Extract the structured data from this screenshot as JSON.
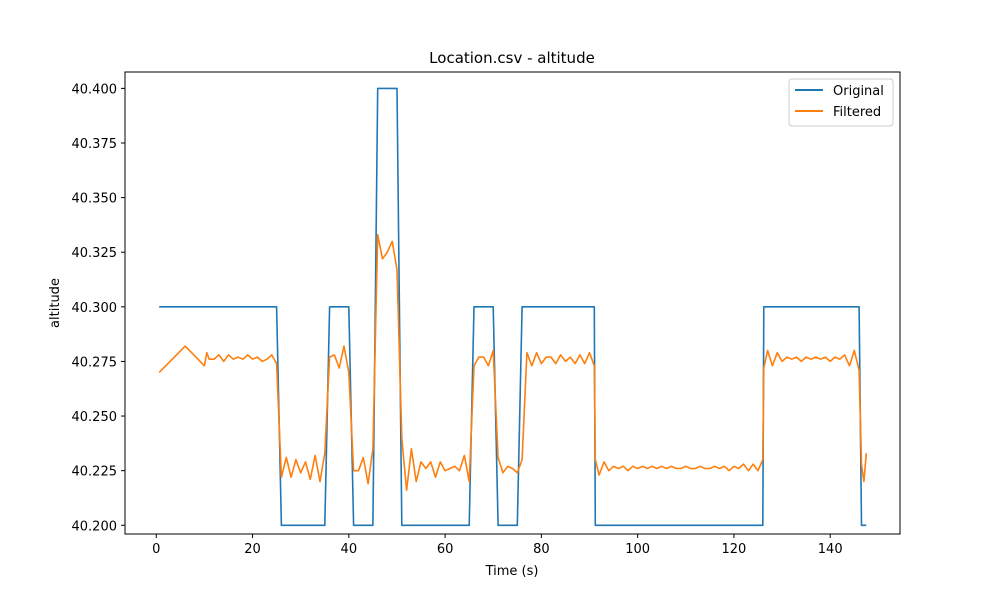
{
  "chart_data": {
    "type": "line",
    "title": "Location.csv - altitude",
    "xlabel": "Time (s)",
    "ylabel": "altitude",
    "xlim": [
      -6.5,
      154.5
    ],
    "ylim": [
      40.196,
      40.4075
    ],
    "xticks": [
      0,
      20,
      40,
      60,
      80,
      100,
      120,
      140
    ],
    "yticks": [
      40.2,
      40.225,
      40.25,
      40.275,
      40.3,
      40.325,
      40.35,
      40.375,
      40.4
    ],
    "ytick_format": 3,
    "grid": false,
    "legend": {
      "placement": "top-right"
    },
    "series": [
      {
        "name": "Original",
        "color": "#1f77b4",
        "points": [
          [
            0.6,
            40.3
          ],
          [
            25.0,
            40.3
          ],
          [
            26.0,
            40.2
          ],
          [
            35.0,
            40.2
          ],
          [
            36.0,
            40.3
          ],
          [
            40.0,
            40.3
          ],
          [
            41.0,
            40.2
          ],
          [
            45.0,
            40.2
          ],
          [
            46.0,
            40.4
          ],
          [
            50.0,
            40.4
          ],
          [
            51.0,
            40.2
          ],
          [
            65.0,
            40.2
          ],
          [
            66.0,
            40.3
          ],
          [
            70.0,
            40.3
          ],
          [
            71.0,
            40.2
          ],
          [
            75.0,
            40.2
          ],
          [
            76.0,
            40.3
          ],
          [
            91.0,
            40.3
          ],
          [
            91.2,
            40.2
          ],
          [
            126.0,
            40.2
          ],
          [
            126.2,
            40.3
          ],
          [
            146.0,
            40.3
          ],
          [
            146.5,
            40.2
          ],
          [
            147.5,
            40.2
          ]
        ]
      },
      {
        "name": "Filtered",
        "color": "#ff7f0e",
        "points": [
          [
            0.6,
            40.27
          ],
          [
            6.0,
            40.282
          ],
          [
            10.0,
            40.273
          ],
          [
            10.5,
            40.279
          ],
          [
            11.0,
            40.276
          ],
          [
            12.0,
            40.276
          ],
          [
            13.0,
            40.278
          ],
          [
            14.0,
            40.275
          ],
          [
            15.0,
            40.278
          ],
          [
            16.0,
            40.276
          ],
          [
            17.0,
            40.277
          ],
          [
            18.0,
            40.276
          ],
          [
            19.0,
            40.278
          ],
          [
            20.0,
            40.276
          ],
          [
            21.0,
            40.277
          ],
          [
            22.0,
            40.275
          ],
          [
            23.0,
            40.276
          ],
          [
            24.0,
            40.278
          ],
          [
            25.0,
            40.274
          ],
          [
            26.0,
            40.222
          ],
          [
            27.0,
            40.231
          ],
          [
            28.0,
            40.222
          ],
          [
            29.0,
            40.23
          ],
          [
            30.0,
            40.224
          ],
          [
            31.0,
            40.229
          ],
          [
            32.0,
            40.221
          ],
          [
            33.0,
            40.232
          ],
          [
            34.0,
            40.22
          ],
          [
            35.0,
            40.233
          ],
          [
            36.0,
            40.277
          ],
          [
            37.0,
            40.278
          ],
          [
            38.0,
            40.272
          ],
          [
            39.0,
            40.282
          ],
          [
            40.0,
            40.27
          ],
          [
            41.0,
            40.225
          ],
          [
            42.0,
            40.225
          ],
          [
            43.0,
            40.231
          ],
          [
            44.0,
            40.219
          ],
          [
            45.0,
            40.235
          ],
          [
            46.0,
            40.333
          ],
          [
            47.0,
            40.322
          ],
          [
            48.0,
            40.325
          ],
          [
            49.0,
            40.33
          ],
          [
            50.0,
            40.317
          ],
          [
            51.0,
            40.24
          ],
          [
            52.0,
            40.216
          ],
          [
            53.0,
            40.235
          ],
          [
            54.0,
            40.22
          ],
          [
            55.0,
            40.229
          ],
          [
            56.0,
            40.226
          ],
          [
            57.0,
            40.229
          ],
          [
            58.0,
            40.222
          ],
          [
            59.0,
            40.229
          ],
          [
            60.0,
            40.225
          ],
          [
            61.0,
            40.226
          ],
          [
            62.0,
            40.227
          ],
          [
            63.0,
            40.225
          ],
          [
            64.0,
            40.232
          ],
          [
            65.0,
            40.22
          ],
          [
            66.0,
            40.273
          ],
          [
            67.0,
            40.277
          ],
          [
            68.0,
            40.277
          ],
          [
            69.0,
            40.273
          ],
          [
            70.0,
            40.28
          ],
          [
            71.0,
            40.231
          ],
          [
            72.0,
            40.224
          ],
          [
            73.0,
            40.227
          ],
          [
            74.0,
            40.226
          ],
          [
            75.0,
            40.224
          ],
          [
            76.0,
            40.23
          ],
          [
            77.0,
            40.279
          ],
          [
            78.0,
            40.273
          ],
          [
            79.0,
            40.279
          ],
          [
            80.0,
            40.274
          ],
          [
            81.0,
            40.277
          ],
          [
            82.0,
            40.277
          ],
          [
            83.0,
            40.274
          ],
          [
            84.0,
            40.278
          ],
          [
            85.0,
            40.275
          ],
          [
            86.0,
            40.277
          ],
          [
            87.0,
            40.274
          ],
          [
            88.0,
            40.278
          ],
          [
            89.0,
            40.274
          ],
          [
            90.0,
            40.279
          ],
          [
            91.0,
            40.273
          ],
          [
            91.2,
            40.23
          ],
          [
            92.0,
            40.223
          ],
          [
            93.0,
            40.229
          ],
          [
            94.0,
            40.225
          ],
          [
            95.0,
            40.227
          ],
          [
            96.0,
            40.226
          ],
          [
            97.0,
            40.227
          ],
          [
            98.0,
            40.225
          ],
          [
            99.0,
            40.227
          ],
          [
            100.0,
            40.226
          ],
          [
            101.0,
            40.227
          ],
          [
            102.0,
            40.226
          ],
          [
            103.0,
            40.227
          ],
          [
            104.0,
            40.226
          ],
          [
            105.0,
            40.227
          ],
          [
            106.0,
            40.226
          ],
          [
            107.0,
            40.227
          ],
          [
            108.0,
            40.226
          ],
          [
            109.0,
            40.226
          ],
          [
            110.0,
            40.227
          ],
          [
            111.0,
            40.226
          ],
          [
            112.0,
            40.226
          ],
          [
            113.0,
            40.227
          ],
          [
            114.0,
            40.226
          ],
          [
            115.0,
            40.226
          ],
          [
            116.0,
            40.227
          ],
          [
            117.0,
            40.226
          ],
          [
            118.0,
            40.227
          ],
          [
            119.0,
            40.225
          ],
          [
            120.0,
            40.227
          ],
          [
            121.0,
            40.226
          ],
          [
            122.0,
            40.228
          ],
          [
            123.0,
            40.225
          ],
          [
            124.0,
            40.228
          ],
          [
            125.0,
            40.225
          ],
          [
            126.0,
            40.23
          ],
          [
            126.2,
            40.272
          ],
          [
            127.0,
            40.28
          ],
          [
            128.0,
            40.273
          ],
          [
            129.0,
            40.279
          ],
          [
            130.0,
            40.275
          ],
          [
            131.0,
            40.277
          ],
          [
            132.0,
            40.276
          ],
          [
            133.0,
            40.277
          ],
          [
            134.0,
            40.275
          ],
          [
            135.0,
            40.277
          ],
          [
            136.0,
            40.276
          ],
          [
            137.0,
            40.277
          ],
          [
            138.0,
            40.276
          ],
          [
            139.0,
            40.277
          ],
          [
            140.0,
            40.275
          ],
          [
            141.0,
            40.277
          ],
          [
            142.0,
            40.276
          ],
          [
            143.0,
            40.278
          ],
          [
            144.0,
            40.273
          ],
          [
            145.0,
            40.28
          ],
          [
            146.0,
            40.271
          ],
          [
            146.5,
            40.228
          ],
          [
            147.0,
            40.22
          ],
          [
            147.5,
            40.233
          ]
        ]
      }
    ]
  }
}
